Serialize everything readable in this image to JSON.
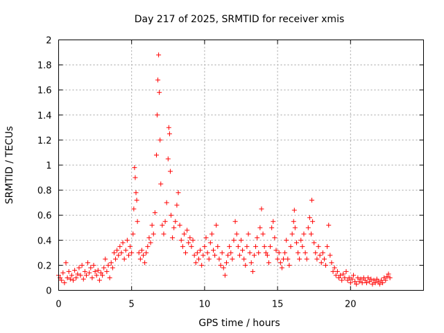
{
  "chart_data": {
    "type": "scatter",
    "title": "Day 217 of 2025, SRMTID for receiver xmis",
    "xlabel": "GPS time / hours",
    "ylabel": "SRMTID / TECUs",
    "xlim": [
      0,
      25
    ],
    "ylim": [
      0,
      2
    ],
    "x_ticks": [
      0,
      5,
      10,
      15,
      20
    ],
    "x_tick_labels": [
      "0",
      "5",
      "10",
      "15",
      "20"
    ],
    "y_ticks": [
      0,
      0.2,
      0.4,
      0.6,
      0.8,
      1,
      1.2,
      1.4,
      1.6,
      1.8,
      2
    ],
    "y_tick_labels": [
      "0",
      "0.2",
      "0.4",
      "0.6",
      "0.8",
      "1",
      "1.2",
      "1.4",
      "1.6",
      "1.8",
      "2"
    ],
    "grid": true,
    "marker": "plus",
    "series": [
      {
        "name": "SRMTID",
        "color": "#ff0000",
        "points": [
          [
            0.0,
            0.12
          ],
          [
            0.1,
            0.1
          ],
          [
            0.2,
            0.08
          ],
          [
            0.3,
            0.14
          ],
          [
            0.4,
            0.06
          ],
          [
            0.5,
            0.22
          ],
          [
            0.6,
            0.1
          ],
          [
            0.7,
            0.15
          ],
          [
            0.8,
            0.09
          ],
          [
            0.9,
            0.12
          ],
          [
            1.0,
            0.08
          ],
          [
            1.1,
            0.16
          ],
          [
            1.2,
            0.1
          ],
          [
            1.3,
            0.13
          ],
          [
            1.4,
            0.18
          ],
          [
            1.5,
            0.12
          ],
          [
            1.6,
            0.2
          ],
          [
            1.7,
            0.09
          ],
          [
            1.8,
            0.15
          ],
          [
            1.9,
            0.12
          ],
          [
            2.0,
            0.22
          ],
          [
            2.1,
            0.14
          ],
          [
            2.2,
            0.18
          ],
          [
            2.3,
            0.1
          ],
          [
            2.4,
            0.2
          ],
          [
            2.5,
            0.15
          ],
          [
            2.6,
            0.12
          ],
          [
            2.7,
            0.16
          ],
          [
            2.8,
            0.08
          ],
          [
            2.9,
            0.14
          ],
          [
            3.0,
            0.12
          ],
          [
            3.1,
            0.18
          ],
          [
            3.2,
            0.25
          ],
          [
            3.3,
            0.15
          ],
          [
            3.4,
            0.2
          ],
          [
            3.5,
            0.1
          ],
          [
            3.6,
            0.22
          ],
          [
            3.7,
            0.18
          ],
          [
            3.8,
            0.3
          ],
          [
            3.9,
            0.25
          ],
          [
            4.0,
            0.32
          ],
          [
            4.1,
            0.28
          ],
          [
            4.2,
            0.35
          ],
          [
            4.3,
            0.3
          ],
          [
            4.4,
            0.38
          ],
          [
            4.5,
            0.25
          ],
          [
            4.6,
            0.32
          ],
          [
            4.7,
            0.4
          ],
          [
            4.8,
            0.28
          ],
          [
            4.9,
            0.35
          ],
          [
            5.0,
            0.3
          ],
          [
            5.1,
            0.45
          ],
          [
            5.15,
            0.65
          ],
          [
            5.2,
            0.98
          ],
          [
            5.25,
            0.9
          ],
          [
            5.3,
            0.78
          ],
          [
            5.35,
            0.72
          ],
          [
            5.4,
            0.55
          ],
          [
            5.5,
            0.3
          ],
          [
            5.6,
            0.25
          ],
          [
            5.7,
            0.32
          ],
          [
            5.8,
            0.28
          ],
          [
            5.9,
            0.22
          ],
          [
            6.0,
            0.3
          ],
          [
            6.1,
            0.35
          ],
          [
            6.2,
            0.42
          ],
          [
            6.3,
            0.38
          ],
          [
            6.4,
            0.52
          ],
          [
            6.5,
            0.45
          ],
          [
            6.6,
            0.62
          ],
          [
            6.7,
            1.08
          ],
          [
            6.75,
            1.4
          ],
          [
            6.8,
            1.68
          ],
          [
            6.85,
            1.88
          ],
          [
            6.9,
            1.58
          ],
          [
            6.95,
            1.2
          ],
          [
            7.0,
            0.85
          ],
          [
            7.1,
            0.52
          ],
          [
            7.2,
            0.45
          ],
          [
            7.3,
            0.55
          ],
          [
            7.4,
            0.7
          ],
          [
            7.5,
            1.05
          ],
          [
            7.55,
            1.3
          ],
          [
            7.6,
            1.25
          ],
          [
            7.65,
            0.95
          ],
          [
            7.7,
            0.6
          ],
          [
            7.8,
            0.42
          ],
          [
            7.9,
            0.5
          ],
          [
            8.0,
            0.55
          ],
          [
            8.1,
            0.68
          ],
          [
            8.2,
            0.78
          ],
          [
            8.3,
            0.52
          ],
          [
            8.4,
            0.4
          ],
          [
            8.5,
            0.35
          ],
          [
            8.6,
            0.45
          ],
          [
            8.7,
            0.3
          ],
          [
            8.8,
            0.48
          ],
          [
            8.9,
            0.38
          ],
          [
            9.0,
            0.42
          ],
          [
            9.1,
            0.35
          ],
          [
            9.2,
            0.4
          ],
          [
            9.3,
            0.28
          ],
          [
            9.4,
            0.22
          ],
          [
            9.5,
            0.3
          ],
          [
            9.6,
            0.25
          ],
          [
            9.7,
            0.32
          ],
          [
            9.8,
            0.2
          ],
          [
            9.9,
            0.28
          ],
          [
            10.0,
            0.35
          ],
          [
            10.1,
            0.42
          ],
          [
            10.2,
            0.3
          ],
          [
            10.3,
            0.25
          ],
          [
            10.4,
            0.38
          ],
          [
            10.5,
            0.45
          ],
          [
            10.6,
            0.32
          ],
          [
            10.7,
            0.28
          ],
          [
            10.8,
            0.52
          ],
          [
            10.9,
            0.35
          ],
          [
            11.0,
            0.25
          ],
          [
            11.1,
            0.2
          ],
          [
            11.2,
            0.3
          ],
          [
            11.3,
            0.18
          ],
          [
            11.4,
            0.12
          ],
          [
            11.5,
            0.22
          ],
          [
            11.6,
            0.28
          ],
          [
            11.7,
            0.35
          ],
          [
            11.8,
            0.3
          ],
          [
            11.9,
            0.25
          ],
          [
            12.0,
            0.4
          ],
          [
            12.1,
            0.55
          ],
          [
            12.2,
            0.45
          ],
          [
            12.3,
            0.35
          ],
          [
            12.4,
            0.28
          ],
          [
            12.5,
            0.4
          ],
          [
            12.6,
            0.32
          ],
          [
            12.7,
            0.25
          ],
          [
            12.8,
            0.2
          ],
          [
            12.9,
            0.35
          ],
          [
            13.0,
            0.45
          ],
          [
            13.1,
            0.3
          ],
          [
            13.2,
            0.22
          ],
          [
            13.3,
            0.15
          ],
          [
            13.4,
            0.28
          ],
          [
            13.5,
            0.35
          ],
          [
            13.6,
            0.42
          ],
          [
            13.7,
            0.3
          ],
          [
            13.8,
            0.5
          ],
          [
            13.9,
            0.65
          ],
          [
            14.0,
            0.45
          ],
          [
            14.1,
            0.35
          ],
          [
            14.2,
            0.3
          ],
          [
            14.3,
            0.28
          ],
          [
            14.4,
            0.22
          ],
          [
            14.5,
            0.35
          ],
          [
            14.6,
            0.5
          ],
          [
            14.7,
            0.55
          ],
          [
            14.8,
            0.42
          ],
          [
            14.9,
            0.32
          ],
          [
            15.0,
            0.25
          ],
          [
            15.1,
            0.3
          ],
          [
            15.2,
            0.22
          ],
          [
            15.3,
            0.18
          ],
          [
            15.4,
            0.25
          ],
          [
            15.5,
            0.3
          ],
          [
            15.6,
            0.4
          ],
          [
            15.7,
            0.25
          ],
          [
            15.8,
            0.2
          ],
          [
            15.9,
            0.35
          ],
          [
            16.0,
            0.45
          ],
          [
            16.1,
            0.55
          ],
          [
            16.15,
            0.64
          ],
          [
            16.2,
            0.5
          ],
          [
            16.3,
            0.38
          ],
          [
            16.4,
            0.3
          ],
          [
            16.5,
            0.25
          ],
          [
            16.6,
            0.4
          ],
          [
            16.7,
            0.35
          ],
          [
            16.8,
            0.45
          ],
          [
            16.9,
            0.3
          ],
          [
            17.0,
            0.25
          ],
          [
            17.1,
            0.5
          ],
          [
            17.2,
            0.58
          ],
          [
            17.3,
            0.45
          ],
          [
            17.35,
            0.72
          ],
          [
            17.4,
            0.55
          ],
          [
            17.5,
            0.38
          ],
          [
            17.6,
            0.3
          ],
          [
            17.7,
            0.25
          ],
          [
            17.8,
            0.35
          ],
          [
            17.9,
            0.28
          ],
          [
            18.0,
            0.22
          ],
          [
            18.1,
            0.3
          ],
          [
            18.2,
            0.25
          ],
          [
            18.3,
            0.2
          ],
          [
            18.4,
            0.35
          ],
          [
            18.5,
            0.52
          ],
          [
            18.6,
            0.28
          ],
          [
            18.7,
            0.22
          ],
          [
            18.8,
            0.15
          ],
          [
            18.9,
            0.18
          ],
          [
            19.0,
            0.12
          ],
          [
            19.1,
            0.15
          ],
          [
            19.2,
            0.1
          ],
          [
            19.3,
            0.12
          ],
          [
            19.4,
            0.08
          ],
          [
            19.5,
            0.13
          ],
          [
            19.6,
            0.1
          ],
          [
            19.7,
            0.15
          ],
          [
            19.8,
            0.08
          ],
          [
            19.9,
            0.1
          ],
          [
            20.0,
            0.06
          ],
          [
            20.1,
            0.09
          ],
          [
            20.2,
            0.12
          ],
          [
            20.3,
            0.07
          ],
          [
            20.4,
            0.05
          ],
          [
            20.5,
            0.1
          ],
          [
            20.6,
            0.07
          ],
          [
            20.7,
            0.09
          ],
          [
            20.8,
            0.06
          ],
          [
            20.9,
            0.1
          ],
          [
            21.0,
            0.08
          ],
          [
            21.1,
            0.06
          ],
          [
            21.2,
            0.1
          ],
          [
            21.3,
            0.07
          ],
          [
            21.4,
            0.09
          ],
          [
            21.5,
            0.05
          ],
          [
            21.6,
            0.08
          ],
          [
            21.7,
            0.06
          ],
          [
            21.8,
            0.09
          ],
          [
            21.9,
            0.07
          ],
          [
            22.0,
            0.05
          ],
          [
            22.1,
            0.08
          ],
          [
            22.2,
            0.06
          ],
          [
            22.3,
            0.1
          ],
          [
            22.4,
            0.08
          ],
          [
            22.5,
            0.11
          ],
          [
            22.6,
            0.13
          ],
          [
            22.7,
            0.1
          ]
        ]
      }
    ]
  }
}
